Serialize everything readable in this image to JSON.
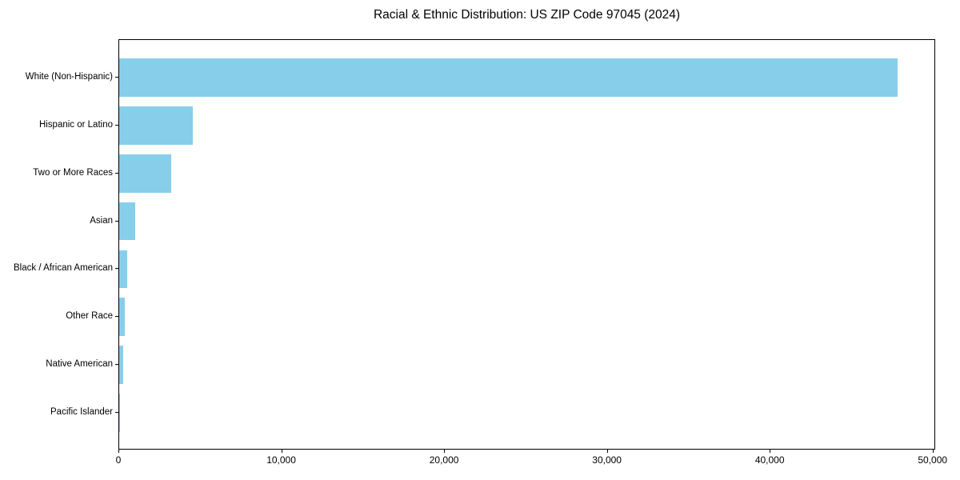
{
  "title": "Racial & Ethnic Distribution: US ZIP Code 97045 (2024)",
  "colors": {
    "bar": "#87CEEB",
    "spine": "#000000",
    "text": "#000000",
    "background": "#ffffff"
  },
  "chart_data": {
    "type": "bar",
    "orientation": "horizontal",
    "title": "Racial & Ethnic Distribution: US ZIP Code 97045 (2024)",
    "xlabel": "",
    "ylabel": "",
    "categories": [
      "White (Non-Hispanic)",
      "Hispanic or Latino",
      "Two or More Races",
      "Asian",
      "Black / African American",
      "Other Race",
      "Native American",
      "Pacific Islander"
    ],
    "values": [
      47800,
      4520,
      3180,
      990,
      500,
      360,
      260,
      40
    ],
    "bar_color": "#87CEEB",
    "xlim": [
      0,
      50160
    ],
    "x_ticks": [
      0,
      10000,
      20000,
      30000,
      40000,
      50000
    ],
    "x_tick_labels": [
      "0",
      "10,000",
      "20,000",
      "30,000",
      "40,000",
      "50,000"
    ],
    "grid": false,
    "legend": null
  }
}
